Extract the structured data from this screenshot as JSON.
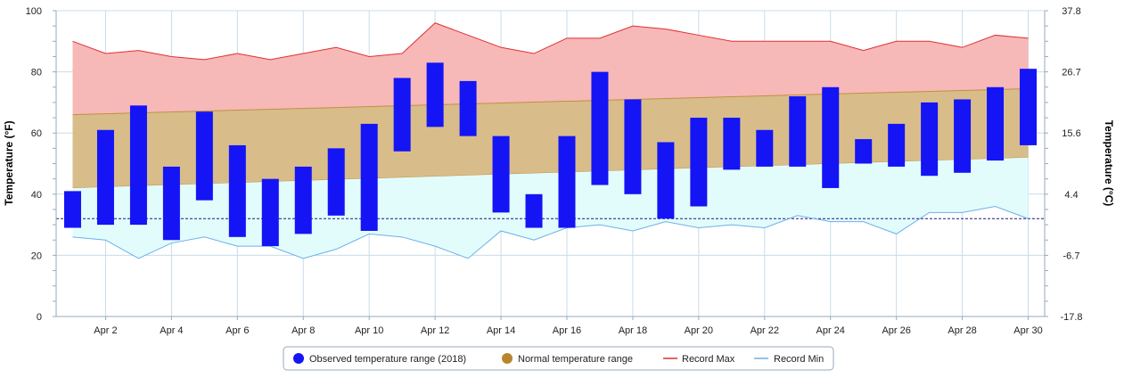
{
  "chart_data": {
    "type": "bar",
    "title": "",
    "x_tick_labels": [
      "Apr 2",
      "Apr 4",
      "Apr 6",
      "Apr 8",
      "Apr 10",
      "Apr 12",
      "Apr 14",
      "Apr 16",
      "Apr 18",
      "Apr 20",
      "Apr 22",
      "Apr 24",
      "Apr 26",
      "Apr 28",
      "Apr 30"
    ],
    "x_tick_days": [
      2,
      4,
      6,
      8,
      10,
      12,
      14,
      16,
      18,
      20,
      22,
      24,
      26,
      28,
      30
    ],
    "days": [
      1,
      2,
      3,
      4,
      5,
      6,
      7,
      8,
      9,
      10,
      11,
      12,
      13,
      14,
      15,
      16,
      17,
      18,
      19,
      20,
      21,
      22,
      23,
      24,
      25,
      26,
      27,
      28,
      29,
      30
    ],
    "xlim": [
      0.5,
      30.5
    ],
    "ylabel_left": "Temperature (°F)",
    "ylabel_right": "Temperature (°C)",
    "ylim": [
      0,
      100
    ],
    "y_ticks_left": [
      "0",
      "20",
      "40",
      "60",
      "80",
      "100"
    ],
    "y_ticks_left_values": [
      0,
      20,
      40,
      60,
      80,
      100
    ],
    "y_ticks_right": [
      "-17.8",
      "-6.7",
      "4.4",
      "15.6",
      "26.7",
      "37.8"
    ],
    "freezing_line": 32,
    "grid": true,
    "legend_position": "bottom",
    "legend": [
      {
        "label": "Observed temperature range (2018)",
        "color": "#1414f5",
        "marker": "circle"
      },
      {
        "label": "Normal temperature range",
        "color": "#b8862a",
        "marker": "circle"
      },
      {
        "label": "Record Max",
        "color": "#e03030",
        "marker": "line"
      },
      {
        "label": "Record Min",
        "color": "#6cb0e8",
        "marker": "line"
      }
    ],
    "series": [
      {
        "name": "Observed temperature range (2018)",
        "low": [
          29,
          30,
          30,
          25,
          38,
          26,
          23,
          27,
          33,
          28,
          54,
          62,
          59,
          34,
          29,
          29,
          43,
          40,
          32,
          36,
          48,
          49,
          49,
          42,
          50,
          49,
          46,
          47,
          51,
          56
        ],
        "high": [
          41,
          61,
          69,
          49,
          67,
          56,
          45,
          49,
          55,
          63,
          78,
          83,
          77,
          59,
          40,
          59,
          80,
          71,
          57,
          65,
          65,
          61,
          72,
          75,
          58,
          63,
          70,
          71,
          75,
          81
        ]
      },
      {
        "name": "Normal temperature range",
        "low_start": 42,
        "low_end": 52,
        "high_start": 66,
        "high_end": 74.5
      },
      {
        "name": "Record Max",
        "values": [
          90,
          86,
          87,
          85,
          84,
          86,
          84,
          86,
          88,
          85,
          86,
          96,
          92,
          88,
          86,
          91,
          91,
          95,
          94,
          92,
          90,
          90,
          90,
          90,
          87,
          90,
          90,
          88,
          92,
          91
        ]
      },
      {
        "name": "Record Min",
        "values": [
          26,
          25,
          19,
          24,
          26,
          23,
          23,
          19,
          22,
          27,
          26,
          23,
          19,
          28,
          25,
          29,
          30,
          28,
          31,
          29,
          30,
          29,
          33,
          31,
          31,
          27,
          34,
          34,
          36,
          32
        ]
      }
    ],
    "colors": {
      "observed": "#1414f5",
      "normal_fill": "#d8bd8a",
      "normal_line": "#c09040",
      "record_max_line": "#e03030",
      "record_max_fill": "#f7b8b8",
      "record_min_line": "#6cb0e8",
      "record_min_fill": "#e2fcfc",
      "freezing_line": "#1a1a7a",
      "grid": "#c8dce8"
    }
  }
}
